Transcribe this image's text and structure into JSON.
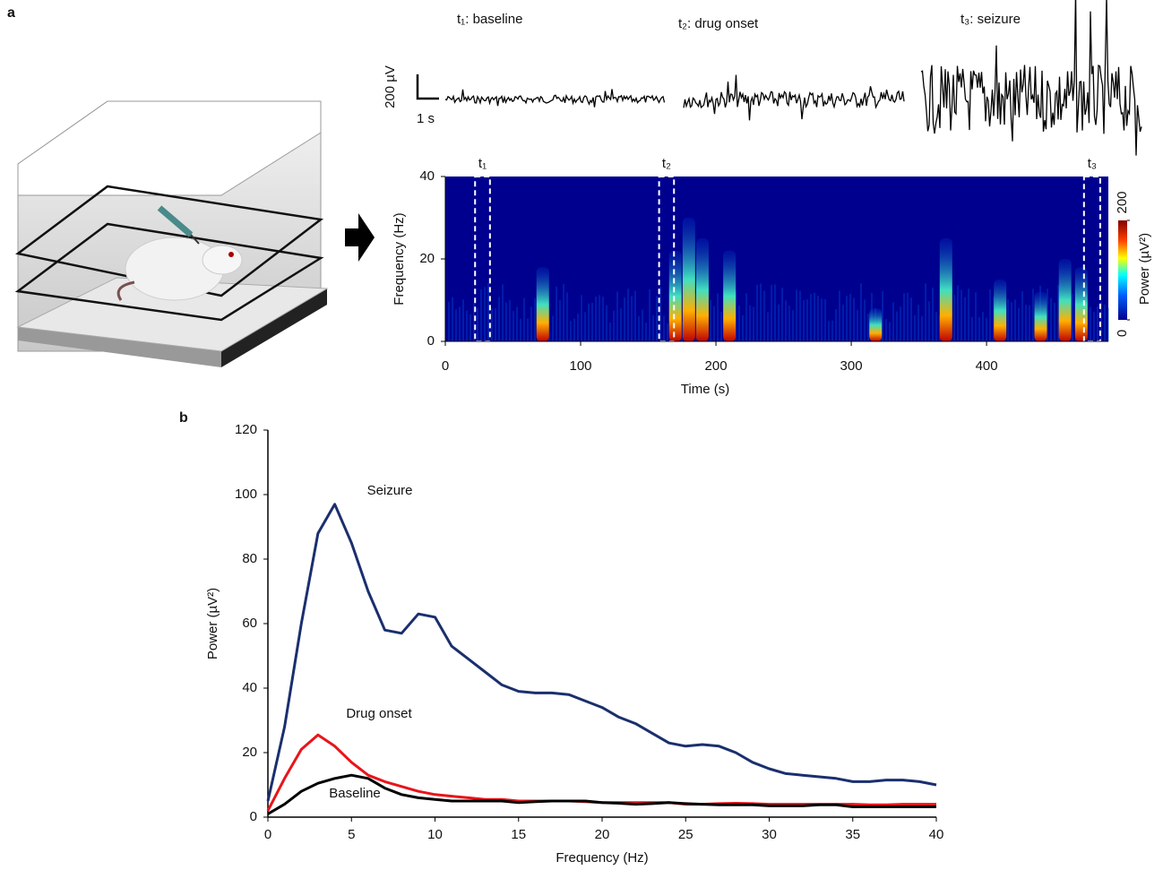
{
  "panel_labels": [
    "a",
    "b"
  ],
  "eeg": {
    "scale_y": "200 µV",
    "scale_x": "1 s",
    "epochs": [
      "t₁: baseline",
      "t₂: drug onset",
      "t₃: seizure"
    ]
  },
  "chart_data": [
    {
      "type": "spectrogram",
      "xlabel": "Time (s)",
      "ylabel": "Frequency (Hz)",
      "xlim": [
        0,
        490
      ],
      "xticks": [
        0,
        100,
        200,
        300,
        400
      ],
      "ylim": [
        0,
        40
      ],
      "yticks": [
        0,
        20,
        40
      ],
      "colorbar": {
        "label": "Power (µV²)",
        "lim": [
          0,
          200
        ],
        "ticks": [
          0,
          200
        ]
      },
      "windows": {
        "labels": [
          "t₁",
          "t₂",
          "t₃"
        ],
        "ranges": [
          [
            22,
            33
          ],
          [
            158,
            169
          ],
          [
            472,
            484
          ]
        ]
      },
      "bursts": {
        "t": [
          72,
          170,
          180,
          190,
          210,
          318,
          370,
          410,
          440,
          458,
          470
        ],
        "f": [
          18,
          22,
          30,
          25,
          22,
          8,
          25,
          15,
          12,
          20,
          18
        ]
      }
    },
    {
      "type": "line",
      "xlabel": "Frequency (Hz)",
      "ylabel": "Power (µV²)",
      "xlim": [
        0,
        40
      ],
      "xticks": [
        0,
        5,
        10,
        15,
        20,
        25,
        30,
        35,
        40
      ],
      "ylim": [
        0,
        120
      ],
      "yticks": [
        0,
        20,
        40,
        60,
        80,
        100,
        120
      ],
      "x": [
        0,
        1,
        2,
        3,
        4,
        5,
        6,
        7,
        8,
        9,
        10,
        11,
        12,
        13,
        14,
        15,
        16,
        17,
        18,
        19,
        20,
        21,
        22,
        23,
        24,
        25,
        26,
        27,
        28,
        29,
        30,
        31,
        32,
        33,
        34,
        35,
        36,
        37,
        38,
        39,
        40
      ],
      "series": [
        {
          "name": "Seizure",
          "color": "#1a2f6e",
          "values": [
            5,
            28,
            60,
            88,
            97,
            85,
            70,
            58,
            57,
            63,
            62,
            53,
            49,
            45,
            41,
            39,
            38.5,
            38.5,
            38,
            36,
            34,
            31,
            29,
            26,
            23,
            22,
            22.5,
            22,
            20,
            17,
            15,
            13.5,
            13,
            12.5,
            12,
            11,
            11,
            11.5,
            11.5,
            11,
            10
          ]
        },
        {
          "name": "Drug onset",
          "color": "#e8141b",
          "values": [
            2,
            12,
            21,
            25.5,
            22,
            17,
            13,
            11,
            9.5,
            8,
            7,
            6.5,
            6,
            5.5,
            5.5,
            5,
            5,
            5,
            5,
            4.8,
            4.5,
            4.5,
            4.5,
            4.5,
            4.5,
            4,
            4,
            4.2,
            4.3,
            4.2,
            4,
            4,
            4,
            4,
            4,
            4,
            3.8,
            3.8,
            4,
            4,
            4
          ]
        },
        {
          "name": "Baseline",
          "color": "#000000",
          "values": [
            1,
            4,
            8,
            10.5,
            12,
            13,
            12,
            9,
            7,
            6,
            5.5,
            5,
            5,
            5,
            5,
            4.5,
            4.8,
            5,
            5,
            5,
            4.5,
            4.3,
            4,
            4.2,
            4.5,
            4.2,
            4,
            3.8,
            3.8,
            3.8,
            3.5,
            3.5,
            3.5,
            3.8,
            3.8,
            3.2,
            3.2,
            3.2,
            3.2,
            3.2,
            3.2
          ]
        }
      ]
    }
  ]
}
